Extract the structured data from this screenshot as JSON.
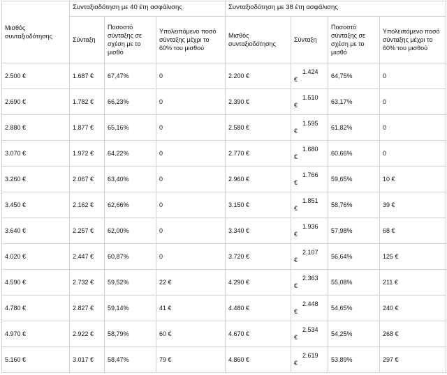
{
  "table": {
    "first_col_header": "Μισθός συνταξιοδότησης",
    "group_40_header": "Συνταξιοδότηση με 40 έτη ασφάλισης",
    "group_38_header": "Συνταξιοδότηση με 38 έτη ασφάλισης",
    "sub_headers_40": [
      "Σύνταξη",
      "Ποσοστό σύνταξης σε σχέση με το μισθό",
      "Υπολειπόμενο ποσό σύνταξης μέχρι το 60% του μισθού"
    ],
    "sub_headers_38": [
      "Μισθός συνταξιοδότησης",
      "Σύνταξη",
      "Ποσοστό σύνταξης σε σχέση με το μισθό",
      "Υπολειπόμενο ποσό σύνταξης μέχρι το 60% του μισθού"
    ],
    "rows": [
      {
        "salary": "2.500 €",
        "pension40": "1.687 €",
        "pct40": "67,47%",
        "rem40": "0",
        "salary38": "2.200 €",
        "pension38_num": "1.424",
        "pension38_unit": "€",
        "pct38": "64,75%",
        "rem38": "0"
      },
      {
        "salary": "2.690 €",
        "pension40": "1.782 €",
        "pct40": "66,23%",
        "rem40": "0",
        "salary38": "2.390 €",
        "pension38_num": "1.510",
        "pension38_unit": "€",
        "pct38": "63,17%",
        "rem38": "0"
      },
      {
        "salary": "2.880 €",
        "pension40": "1.877 €",
        "pct40": "65,16%",
        "rem40": "0",
        "salary38": "2.580 €",
        "pension38_num": "1.595",
        "pension38_unit": "€",
        "pct38": "61,82%",
        "rem38": "0"
      },
      {
        "salary": "3.070 €",
        "pension40": "1.972 €",
        "pct40": "64,22%",
        "rem40": "0",
        "salary38": "2.770 €",
        "pension38_num": "1.680",
        "pension38_unit": "€",
        "pct38": "60,66%",
        "rem38": "0"
      },
      {
        "salary": "3.260 €",
        "pension40": "2.067 €",
        "pct40": "63,40%",
        "rem40": "0",
        "salary38": "2.960 €",
        "pension38_num": "1.766",
        "pension38_unit": "€",
        "pct38": "59,65%",
        "rem38": "10 €"
      },
      {
        "salary": "3.450 €",
        "pension40": "2.162 €",
        "pct40": "62,66%",
        "rem40": "0",
        "salary38": "3.150 €",
        "pension38_num": "1.851",
        "pension38_unit": "€",
        "pct38": "58,76%",
        "rem38": "39 €"
      },
      {
        "salary": "3.640 €",
        "pension40": "2.257 €",
        "pct40": "62,00%",
        "rem40": "0",
        "salary38": "3.340 €",
        "pension38_num": "1.936",
        "pension38_unit": "€",
        "pct38": "57,98%",
        "rem38": "68 €"
      },
      {
        "salary": "4.020 €",
        "pension40": "2.447 €",
        "pct40": "60,87%",
        "rem40": "0",
        "salary38": "3.720 €",
        "pension38_num": "2.107",
        "pension38_unit": "€",
        "pct38": "56,64%",
        "rem38": "125 €"
      },
      {
        "salary": "4.590 €",
        "pension40": "2.732 €",
        "pct40": "59,52%",
        "rem40": "22 €",
        "salary38": "4.290 €",
        "pension38_num": "2.363",
        "pension38_unit": "€",
        "pct38": "55,08%",
        "rem38": "211 €"
      },
      {
        "salary": "4.780 €",
        "pension40": "2.827 €",
        "pct40": "59,14%",
        "rem40": "41 €",
        "salary38": "4.480 €",
        "pension38_num": "2.448",
        "pension38_unit": "€",
        "pct38": "54,65%",
        "rem38": "240 €"
      },
      {
        "salary": "4.970 €",
        "pension40": "2.922 €",
        "pct40": "58,79%",
        "rem40": "60 €",
        "salary38": "4.670 €",
        "pension38_num": "2.534",
        "pension38_unit": "€",
        "pct38": "54,25%",
        "rem38": "268 €"
      },
      {
        "salary": "5.160 €",
        "pension40": "3.017 €",
        "pct40": "58,47%",
        "rem40": "79 €",
        "salary38": "4.860 €",
        "pension38_num": "2.619",
        "pension38_unit": "€",
        "pct38": "53,89%",
        "rem38": "297 €"
      }
    ]
  }
}
